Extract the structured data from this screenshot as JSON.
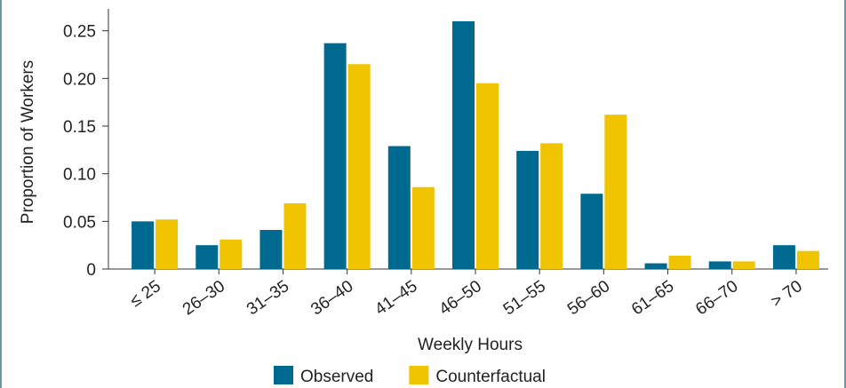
{
  "chart_data": {
    "type": "bar",
    "x_label": "Weekly Hours",
    "y_label": "Proportion of Workers",
    "categories": [
      "≤ 25",
      "26–30",
      "31–35",
      "36–40",
      "41–45",
      "46–50",
      "51–55",
      "56–60",
      "61–65",
      "66–70",
      "> 70"
    ],
    "series": [
      {
        "name": "Observed",
        "color": "#00698f",
        "values": [
          0.05,
          0.025,
          0.041,
          0.237,
          0.129,
          0.26,
          0.124,
          0.079,
          0.006,
          0.008,
          0.025
        ]
      },
      {
        "name": "Counterfactual",
        "color": "#f0c400",
        "values": [
          0.052,
          0.031,
          0.069,
          0.215,
          0.086,
          0.195,
          0.132,
          0.162,
          0.014,
          0.008,
          0.019
        ]
      }
    ],
    "ylim": [
      0,
      0.273
    ],
    "yticks": [
      0,
      0.05,
      {
        "value": 0.1,
        "label": "0.10"
      },
      0.15,
      {
        "value": 0.2,
        "label": "0.20"
      },
      0.25
    ],
    "grid": false
  }
}
